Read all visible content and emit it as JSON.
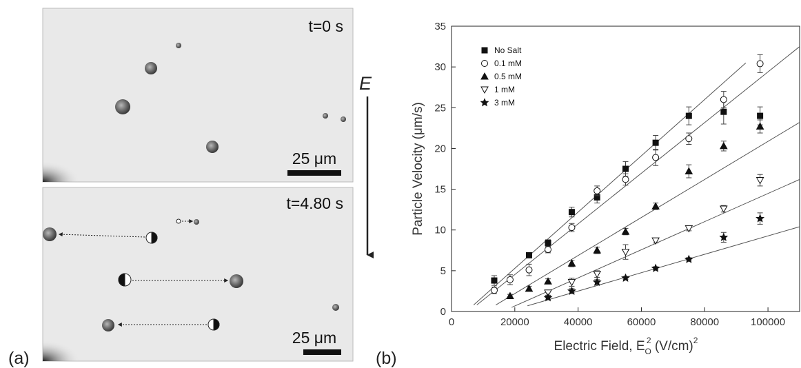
{
  "panel_a": {
    "label": "(a)",
    "top_time": "t=0 s",
    "bottom_time": "t=4.80 s",
    "scale_top": "25 μm",
    "scale_bottom": "25 μm",
    "field": "E"
  },
  "chart_data": {
    "type": "scatter",
    "panel_label": "(b)",
    "y_label": "Particle Velocity (μm/s)",
    "x_label": [
      "Electric Field, E",
      "O",
      "2",
      " (V/cm)",
      "2"
    ],
    "xlim": [
      0,
      110000
    ],
    "xticks": [
      0,
      20000,
      40000,
      60000,
      80000,
      100000
    ],
    "ylim": [
      0,
      35
    ],
    "yticks": [
      0,
      5,
      10,
      15,
      20,
      25,
      30,
      35
    ],
    "legend": "top-left",
    "series": [
      {
        "name": "No Salt",
        "marker": "square",
        "color": "#111111",
        "x": [
          13500,
          24500,
          30500,
          38000,
          46000,
          55000,
          64500,
          75000,
          86000,
          97500
        ],
        "values": [
          3.8,
          6.9,
          8.4,
          12.2,
          14.0,
          17.5,
          20.7,
          24.0,
          24.5,
          24.0
        ],
        "errors": [
          0.6,
          0.3,
          0.4,
          0.6,
          0.7,
          0.9,
          0.9,
          1.1,
          1.5,
          1.1
        ],
        "fit_x": [
          7000,
          93000
        ],
        "fit_y": [
          0.8,
          30.5
        ]
      },
      {
        "name": "0.1 mM",
        "marker": "circle-open",
        "color": "#111111",
        "x": [
          13500,
          18500,
          24500,
          30500,
          38000,
          46000,
          55000,
          64500,
          75000,
          86000,
          97500
        ],
        "values": [
          2.6,
          3.9,
          5.1,
          7.6,
          10.3,
          14.8,
          16.2,
          18.9,
          21.2,
          26.0,
          30.4
        ],
        "errors": [
          0.4,
          0.6,
          0.7,
          0.4,
          0.5,
          0.6,
          0.7,
          1.0,
          0.7,
          1.0,
          1.1
        ],
        "fit_x": [
          8000,
          110000
        ],
        "fit_y": [
          0.8,
          32.5
        ]
      },
      {
        "name": "0.5 mM",
        "marker": "triangle",
        "color": "#111111",
        "x": [
          18500,
          24500,
          30500,
          38000,
          46000,
          55000,
          64500,
          75000,
          86000,
          97500
        ],
        "values": [
          1.9,
          2.8,
          3.7,
          5.9,
          7.5,
          9.8,
          12.9,
          17.2,
          20.3,
          22.7
        ],
        "errors": [
          0.2,
          0.3,
          0.3,
          0.4,
          0.4,
          0.4,
          0.4,
          0.8,
          0.6,
          0.8
        ],
        "fit_x": [
          14000,
          110000
        ],
        "fit_y": [
          0.8,
          23.2
        ]
      },
      {
        "name": "1 mM",
        "marker": "triangle-down-open",
        "color": "#111111",
        "x": [
          30500,
          38000,
          46000,
          55000,
          64500,
          75000,
          86000,
          97500
        ],
        "values": [
          2.3,
          3.6,
          4.6,
          7.3,
          8.7,
          10.2,
          12.6,
          16.1
        ],
        "errors": [
          0.3,
          0.5,
          0.4,
          0.9,
          0.3,
          0.3,
          0.4,
          0.7
        ],
        "fit_x": [
          19000,
          110000
        ],
        "fit_y": [
          0.5,
          16.2
        ]
      },
      {
        "name": "3 mM",
        "marker": "star",
        "color": "#111111",
        "x": [
          30500,
          38000,
          46000,
          55000,
          64500,
          75000,
          86000,
          97500
        ],
        "values": [
          1.7,
          2.5,
          3.6,
          4.1,
          5.3,
          6.4,
          9.1,
          11.4
        ],
        "errors": [
          0.2,
          0.3,
          0.3,
          0.2,
          0.2,
          0.2,
          0.6,
          0.7
        ],
        "fit_x": [
          24000,
          110000
        ],
        "fit_y": [
          0.7,
          10.4
        ]
      }
    ]
  }
}
